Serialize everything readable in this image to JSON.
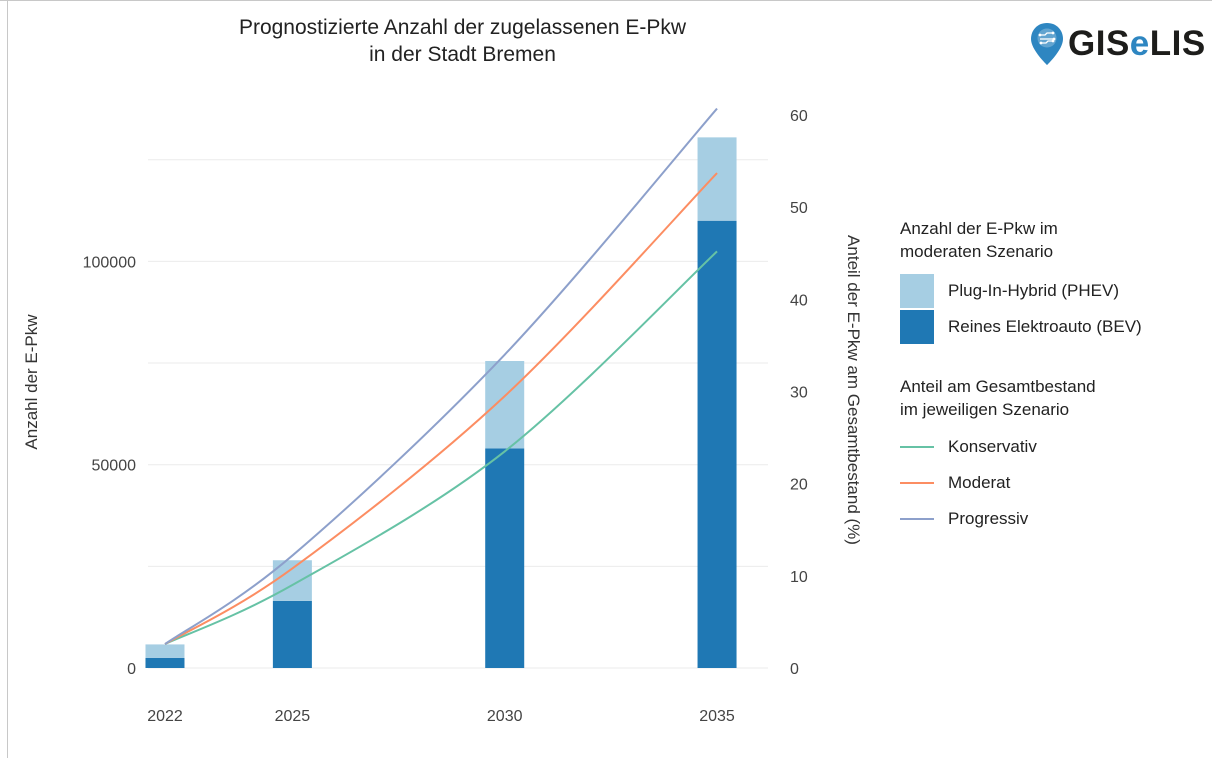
{
  "title_line1": "Prognostizierte Anzahl der zugelassenen E-Pkw",
  "title_line2": "in der Stadt Bremen",
  "logo": {
    "text_start": "GIS",
    "text_accent": "e",
    "text_end": "LIS",
    "icon": "map-pin-circuit-icon",
    "accent_color": "#2e86c1"
  },
  "chart_data": {
    "type": "bar",
    "title": "Prognostizierte Anzahl der zugelassenen E-Pkw in der Stadt Bremen",
    "x": [
      2022,
      2025,
      2030,
      2035
    ],
    "categories": [
      "2022",
      "2025",
      "2030",
      "2035"
    ],
    "ylabel": "Anzahl der E-Pkw",
    "ylim": [
      0,
      136000
    ],
    "yticks": [
      0,
      50000,
      100000
    ],
    "ytick_labels": [
      "0",
      "50000",
      "100000"
    ],
    "y2label": "Anteil der E-Pkw am Gesamtbestand (%)",
    "y2lim": [
      0,
      60
    ],
    "y2ticks": [
      0,
      10,
      20,
      30,
      40,
      50,
      60
    ],
    "grid": true,
    "bar_series": [
      {
        "name": "Reines Elektroauto (BEV)",
        "color": "#1f78b4",
        "values": [
          2500,
          16500,
          54000,
          110000
        ]
      },
      {
        "name": "Plug-In-Hybrid (PHEV)",
        "color": "#a6cee3",
        "values": [
          3300,
          10000,
          21500,
          20500
        ]
      }
    ],
    "line_series": [
      {
        "name": "Konservativ",
        "color": "#66c2a5",
        "axis": "right",
        "values": [
          2.6,
          9.0,
          23.5,
          45.2
        ]
      },
      {
        "name": "Moderat",
        "color": "#fc8d62",
        "axis": "right",
        "values": [
          2.6,
          10.8,
          29.5,
          53.7
        ]
      },
      {
        "name": "Progressiv",
        "color": "#8da0cb",
        "axis": "right",
        "values": [
          2.6,
          12.2,
          34.0,
          60.7
        ]
      }
    ],
    "legend_position": "right"
  },
  "legend": {
    "bars_title_line1": "Anzahl der E-Pkw im",
    "bars_title_line2": "moderaten Szenario",
    "lines_title_line1": "Anteil am Gesamtbestand",
    "lines_title_line2": "im jeweiligen Szenario"
  }
}
